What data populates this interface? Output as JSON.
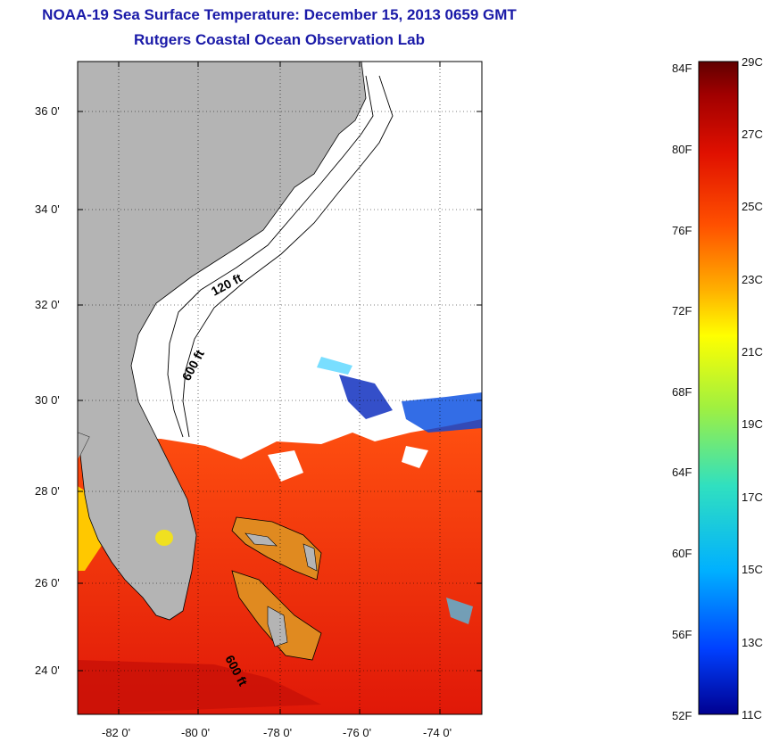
{
  "header": {
    "title": "NOAA-19 Sea Surface Temperature:  December 15, 2013 0659 GMT",
    "subtitle": "Rutgers Coastal Ocean Observation Lab"
  },
  "map": {
    "lat_ticks": [
      "36 0'",
      "34 0'",
      "32 0'",
      "30 0'",
      "28 0'",
      "26 0'",
      "24 0'"
    ],
    "lon_ticks": [
      "-82 0'",
      "-80 0'",
      "-78 0'",
      "-76 0'",
      "-74 0'"
    ],
    "contour_labels": [
      "120 ft",
      "600 ft",
      "600 ft"
    ],
    "colors": {
      "land": "#b4b4b4",
      "cloud": "#ffffff",
      "warm_sea": "#f03010"
    }
  },
  "colorbar": {
    "fahrenheit_labels": [
      "84F",
      "80F",
      "76F",
      "72F",
      "68F",
      "64F",
      "60F",
      "56F",
      "52F"
    ],
    "celsius_labels": [
      "29C",
      "27C",
      "25C",
      "23C",
      "21C",
      "19C",
      "17C",
      "15C",
      "13C",
      "11C"
    ],
    "colors": [
      "#000090",
      "#0040ff",
      "#00b0ff",
      "#30e0c0",
      "#a0f040",
      "#ffff00",
      "#ffb000",
      "#ff5000",
      "#e01000",
      "#a00000",
      "#600000"
    ]
  }
}
